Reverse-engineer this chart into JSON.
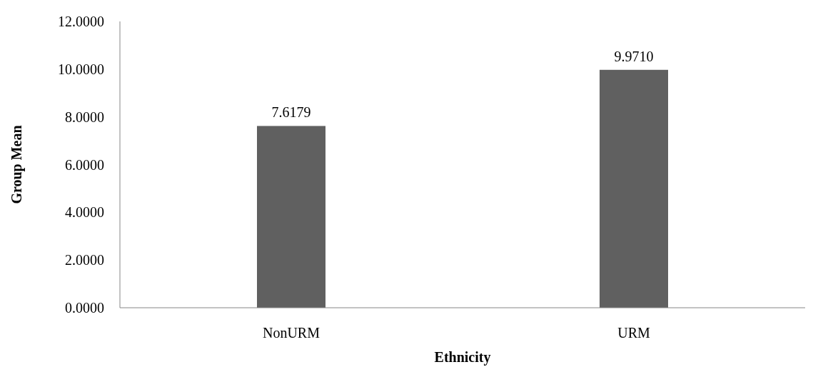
{
  "chart_data": {
    "type": "bar",
    "xlabel": "Ethnicity",
    "ylabel": "Group Mean",
    "categories": [
      "NonURM",
      "URM"
    ],
    "values": [
      7.6179,
      9.971
    ],
    "value_labels": [
      "7.6179",
      "9.9710"
    ],
    "color": "#606060",
    "ylim": [
      0,
      12
    ],
    "yticks": [
      {
        "value": 0,
        "label": "0.0000"
      },
      {
        "value": 2,
        "label": "2.0000"
      },
      {
        "value": 4,
        "label": "4.0000"
      },
      {
        "value": 6,
        "label": "6.0000"
      },
      {
        "value": 8,
        "label": "8.0000"
      },
      {
        "value": 10,
        "label": "10.0000"
      },
      {
        "value": 12,
        "label": "12.0000"
      }
    ],
    "grid": false
  }
}
